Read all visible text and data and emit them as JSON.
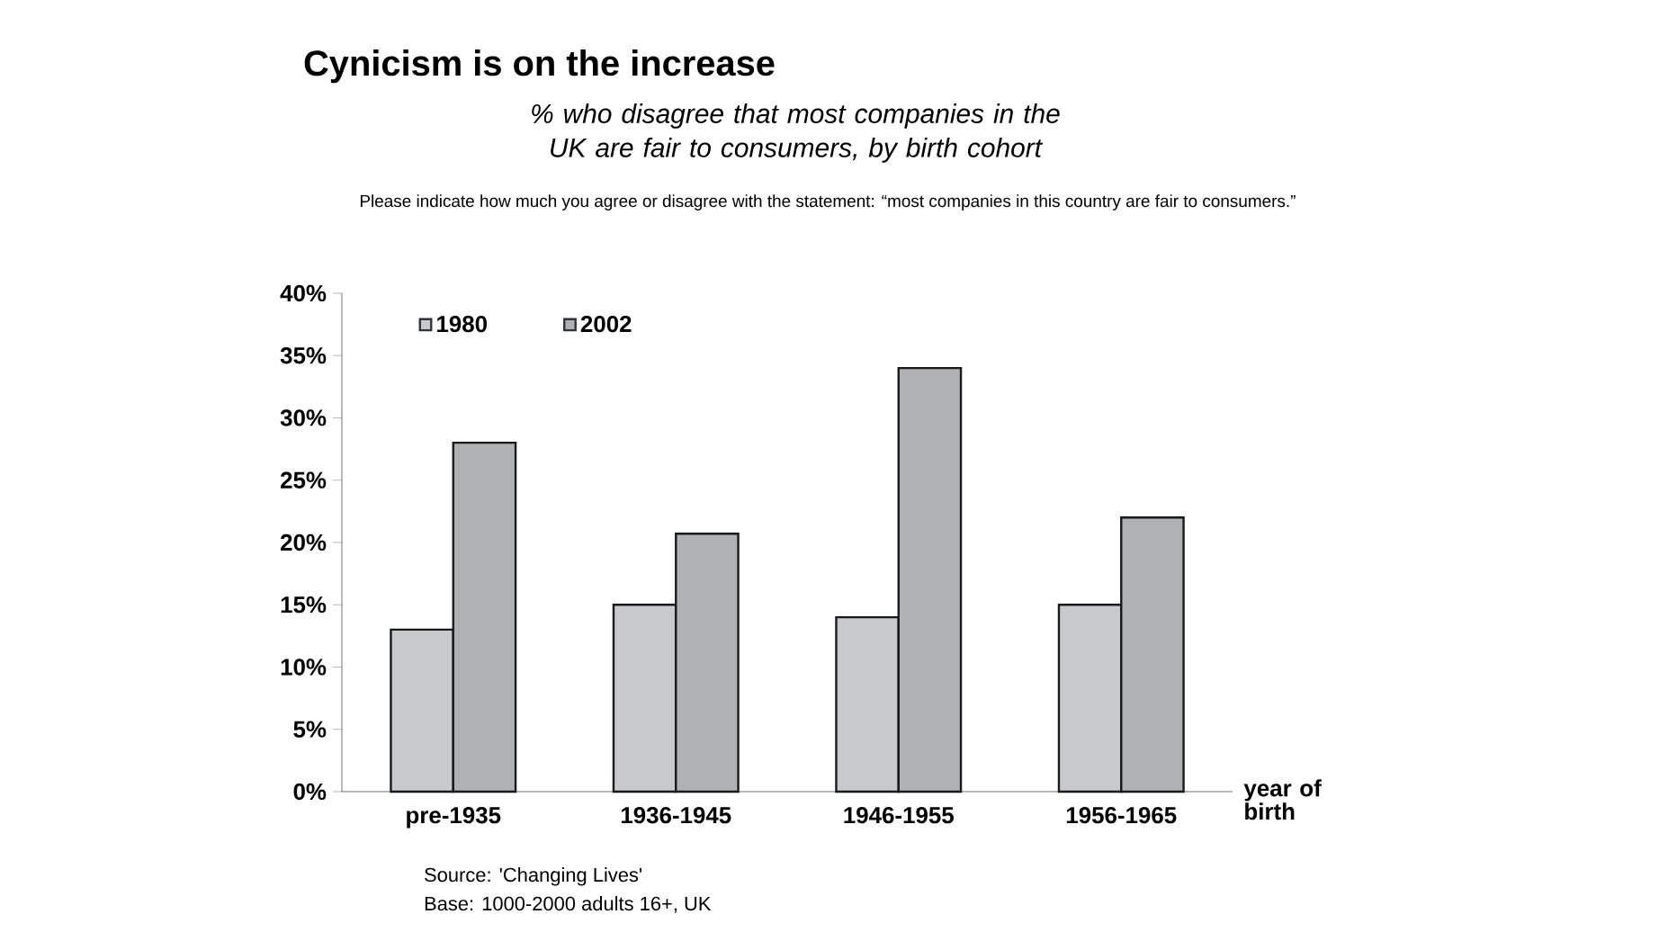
{
  "chart_data": {
    "type": "bar",
    "title": "Cynicism is on the increase",
    "subtitle": "% who disagree that most companies in the UK are fair to consumers, by birth cohort",
    "xlabel": "year of birth",
    "categories": [
      "pre-1935",
      "1936-1945",
      "1946-1955",
      "1956-1965"
    ],
    "series": [
      {
        "name": "1980",
        "color": "#c8c9cb",
        "values": [
          13,
          15,
          14,
          15
        ]
      },
      {
        "name": "2002",
        "color": "#b0b1b5",
        "values": [
          28,
          20.7,
          34,
          22
        ]
      }
    ],
    "ylim": [
      0,
      40
    ],
    "yticks": [
      {
        "value": 0,
        "label": "0%"
      },
      {
        "value": 5,
        "label": "5%"
      },
      {
        "value": 10,
        "label": "10%"
      },
      {
        "value": 15,
        "label": "15%"
      },
      {
        "value": 20,
        "label": "20%"
      },
      {
        "value": 25,
        "label": "25%"
      },
      {
        "value": 30,
        "label": "30%"
      },
      {
        "value": 35,
        "label": "35%"
      },
      {
        "value": 40,
        "label": "40%"
      }
    ],
    "legend": "top left",
    "grid": false,
    "annotations": [
      "Please indicate how much you agree or disagree with the statement: “most companies in this country are fair to consumers.”",
      "Source: 'Changing Lives'",
      "Base: 1000-2000 adults 16+, UK"
    ]
  }
}
